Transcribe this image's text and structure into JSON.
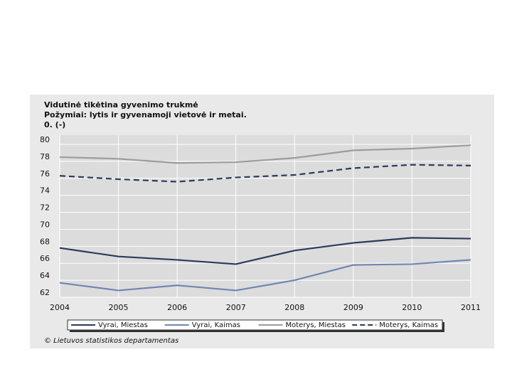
{
  "chart_data": {
    "type": "line",
    "title": "Vidutinė tikėtina gyvenimo trukmė",
    "subtitle": "Požymiai: lytis ir gyvenamoji vietovė ir metai.",
    "unit_label": "0. (-)",
    "source": "© Lietuvos statistikos departamentas",
    "x": [
      2004,
      2005,
      2006,
      2007,
      2008,
      2009,
      2010,
      2011
    ],
    "xlim": [
      2004,
      2011
    ],
    "xticks": [
      2004,
      2005,
      2006,
      2007,
      2008,
      2009,
      2010,
      2011
    ],
    "ylim": [
      62,
      80
    ],
    "yticks": [
      62,
      64,
      66,
      68,
      70,
      72,
      74,
      76,
      78,
      80
    ],
    "grid": true,
    "legend": "bottom",
    "series": [
      {
        "name": "Vyrai, Miestas",
        "color": "#2b3a5c",
        "dash": false,
        "values": [
          67.8,
          66.8,
          66.4,
          65.9,
          67.5,
          68.4,
          69.0,
          68.9
        ]
      },
      {
        "name": "Vyrai, Kaimas",
        "color": "#6f86b0",
        "dash": false,
        "values": [
          63.7,
          62.8,
          63.4,
          62.8,
          64.0,
          65.8,
          65.9,
          66.4
        ]
      },
      {
        "name": "Moterys, Miestas",
        "color": "#9c9c9c",
        "dash": false,
        "values": [
          78.5,
          78.3,
          77.8,
          77.9,
          78.4,
          79.3,
          79.5,
          79.9
        ]
      },
      {
        "name": "Moterys, Kaimas",
        "color": "#2b3a5c",
        "dash": true,
        "values": [
          76.3,
          75.9,
          75.6,
          76.1,
          76.4,
          77.2,
          77.6,
          77.5
        ]
      }
    ]
  }
}
